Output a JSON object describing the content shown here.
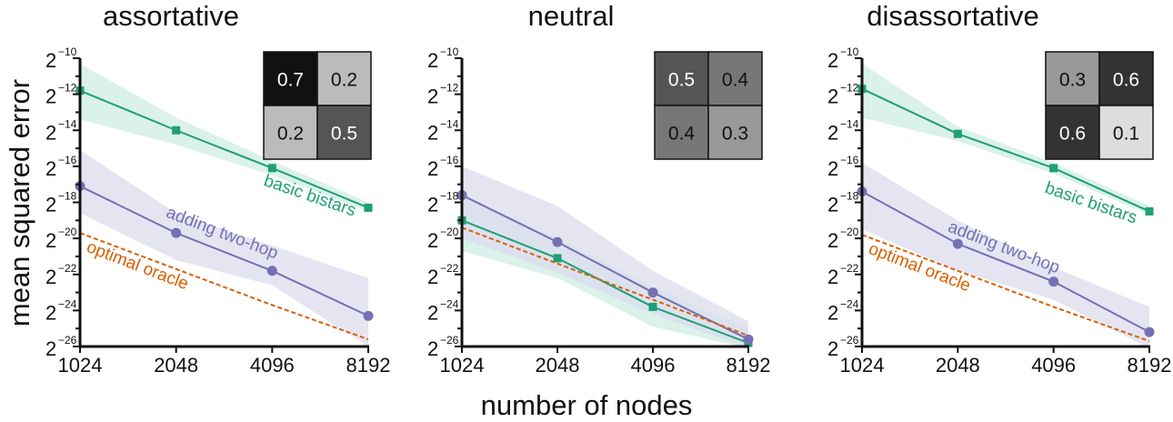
{
  "figure": {
    "ylabel": "mean squared error",
    "xlabel": "number of nodes"
  },
  "colors": {
    "basic_bistars": "#1f9e77",
    "basic_bistars_band": "#cdeee2",
    "two_hop": "#7570b3",
    "two_hop_band": "#dcdcee",
    "oracle": "#d95f02",
    "axis": "#111111"
  },
  "chart_data": [
    {
      "type": "line",
      "title": "assortative",
      "xlabel": "number of nodes",
      "ylabel": "mean squared error",
      "x_scale": "log2",
      "y_scale": "log2",
      "x": [
        1024,
        2048,
        4096,
        8192
      ],
      "x_ticks": [
        "1024",
        "2048",
        "4096",
        "8192"
      ],
      "y_ticks": [
        "2^-10",
        "2^-12",
        "2^-14",
        "2^-16",
        "2^-18",
        "2^-20",
        "2^-22",
        "2^-24",
        "2^-26"
      ],
      "ylim_log2": [
        -26,
        -10
      ],
      "inset_matrix": [
        [
          0.7,
          0.2
        ],
        [
          0.2,
          0.5
        ]
      ],
      "series": [
        {
          "name": "basic bistars",
          "marker": "square",
          "log2_values": [
            -11.8,
            -14.0,
            -16.1,
            -18.3
          ],
          "band_log2": [
            [
              -13.4,
              -10.3
            ],
            [
              -14.8,
              -13.3
            ],
            [
              -16.5,
              -15.7
            ],
            [
              -18.5,
              -18.0
            ]
          ],
          "label_shown": true
        },
        {
          "name": "adding two-hop",
          "marker": "circle",
          "log2_values": [
            -17.1,
            -19.7,
            -21.8,
            -24.3
          ],
          "band_log2": [
            [
              -18.6,
              -15.1
            ],
            [
              -21.2,
              -18.6
            ],
            [
              -22.6,
              -20.4
            ],
            [
              -26.0,
              -22.2
            ]
          ],
          "label_shown": true
        },
        {
          "name": "optimal oracle",
          "marker": "none",
          "dashed": true,
          "log2_values": [
            -19.7,
            -21.7,
            -23.7,
            -25.6
          ],
          "label_shown": true
        }
      ],
      "legend_position": "inline labels"
    },
    {
      "type": "line",
      "title": "neutral",
      "xlabel": "number of nodes",
      "ylabel": "mean squared error",
      "x_scale": "log2",
      "y_scale": "log2",
      "x": [
        1024,
        2048,
        4096,
        8192
      ],
      "x_ticks": [
        "1024",
        "2048",
        "4096",
        "8192"
      ],
      "y_ticks": [
        "2^-10",
        "2^-12",
        "2^-14",
        "2^-16",
        "2^-18",
        "2^-20",
        "2^-22",
        "2^-24",
        "2^-26"
      ],
      "ylim_log2": [
        -26,
        -10
      ],
      "inset_matrix": [
        [
          0.5,
          0.4
        ],
        [
          0.4,
          0.3
        ]
      ],
      "series": [
        {
          "name": "basic bistars",
          "marker": "square",
          "log2_values": [
            -19.0,
            -21.1,
            -23.8,
            -25.8
          ],
          "band_log2": [
            [
              -20.7,
              -17.6
            ],
            [
              -22.2,
              -20.0
            ],
            [
              -24.9,
              -22.7
            ],
            [
              -27.0,
              -25.0
            ]
          ],
          "label_shown": false
        },
        {
          "name": "adding two-hop",
          "marker": "circle",
          "log2_values": [
            -17.6,
            -20.2,
            -23.0,
            -25.6
          ],
          "band_log2": [
            [
              -20.0,
              -16.0
            ],
            [
              -21.9,
              -18.2
            ],
            [
              -24.2,
              -21.8
            ],
            [
              -26.5,
              -24.6
            ]
          ],
          "label_shown": false
        },
        {
          "name": "optimal oracle",
          "marker": "none",
          "dashed": true,
          "log2_values": [
            -19.4,
            -21.4,
            -23.4,
            -25.4
          ],
          "label_shown": false
        }
      ],
      "legend_position": "none"
    },
    {
      "type": "line",
      "title": "disassortative",
      "xlabel": "number of nodes",
      "ylabel": "mean squared error",
      "x_scale": "log2",
      "y_scale": "log2",
      "x": [
        1024,
        2048,
        4096,
        8192
      ],
      "x_ticks": [
        "1024",
        "2048",
        "4096",
        "8192"
      ],
      "y_ticks": [
        "2^-10",
        "2^-12",
        "2^-14",
        "2^-16",
        "2^-18",
        "2^-20",
        "2^-22",
        "2^-24",
        "2^-26"
      ],
      "ylim_log2": [
        -26,
        -10
      ],
      "inset_matrix": [
        [
          0.3,
          0.6
        ],
        [
          0.6,
          0.1
        ]
      ],
      "series": [
        {
          "name": "basic bistars",
          "marker": "square",
          "log2_values": [
            -11.7,
            -14.2,
            -16.1,
            -18.5
          ],
          "band_log2": [
            [
              -13.3,
              -10.3
            ],
            [
              -14.6,
              -13.8
            ],
            [
              -16.4,
              -15.8
            ],
            [
              -18.7,
              -18.2
            ]
          ],
          "label_shown": true
        },
        {
          "name": "adding two-hop",
          "marker": "circle",
          "log2_values": [
            -17.4,
            -20.3,
            -22.4,
            -25.2
          ],
          "band_log2": [
            [
              -19.5,
              -15.8
            ],
            [
              -21.8,
              -19.0
            ],
            [
              -23.4,
              -21.6
            ],
            [
              -26.5,
              -23.8
            ]
          ],
          "label_shown": true
        },
        {
          "name": "optimal oracle",
          "marker": "none",
          "dashed": true,
          "log2_values": [
            -19.8,
            -21.8,
            -23.8,
            -25.7
          ],
          "label_shown": true
        }
      ],
      "legend_position": "inline labels"
    }
  ],
  "panels": [
    {
      "title": "assortative"
    },
    {
      "title": "neutral"
    },
    {
      "title": "disassortative"
    }
  ]
}
